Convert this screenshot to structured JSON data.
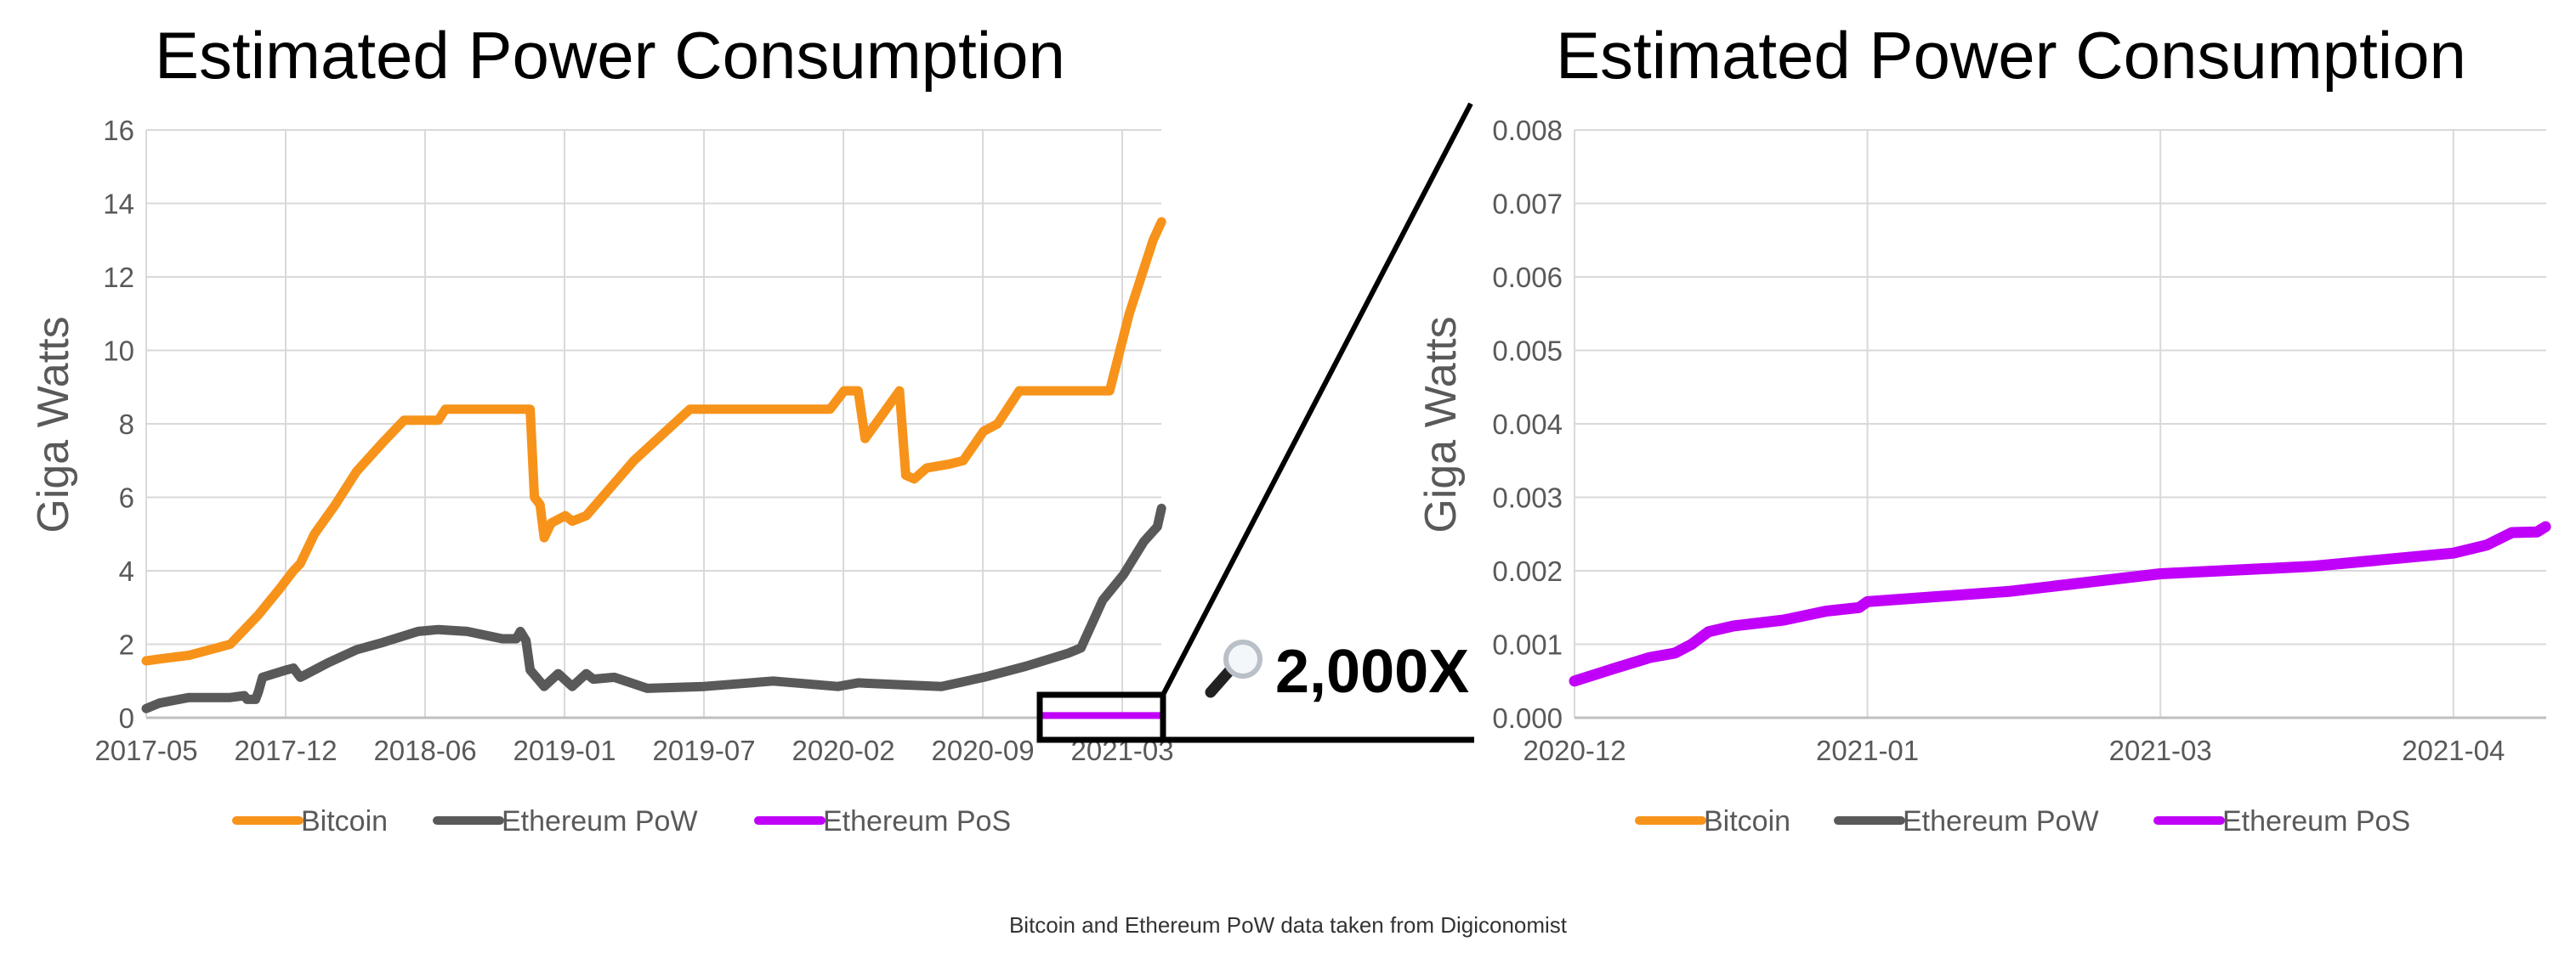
{
  "chart_data": [
    {
      "type": "line",
      "title": "Estimated Power Consumption",
      "xlabel": "",
      "ylabel": "Giga Watts",
      "ylim": [
        0,
        16
      ],
      "yticks": [
        "0",
        "2",
        "4",
        "6",
        "8",
        "10",
        "12",
        "14",
        "16"
      ],
      "xtick_labels": [
        "2017-05",
        "2017-12",
        "2018-06",
        "2019-01",
        "2019-07",
        "2020-02",
        "2020-09",
        "2021-03"
      ],
      "grid": true,
      "legend": "bottom",
      "series": [
        {
          "name": "Bitcoin",
          "color": "#F7931A",
          "x": [
            "2017-05-01",
            "2017-05-20",
            "2017-07-01",
            "2017-08-19",
            "2017-08-29",
            "2017-10-08",
            "2017-11-07",
            "2017-11-27",
            "2017-12-07",
            "2017-12-27",
            "2018-01-26",
            "2018-02-25",
            "2018-04-04",
            "2018-05-04",
            "2018-06-22",
            "2018-07-02",
            "2018-10-31",
            "2018-11-06",
            "2018-11-14",
            "2018-11-20",
            "2018-11-30",
            "2018-12-20",
            "2018-12-30",
            "2019-01-19",
            "2019-03-28",
            "2019-06-16",
            "2020-01-02",
            "2020-01-22",
            "2020-02-11",
            "2020-02-21",
            "2020-04-10",
            "2020-04-19",
            "2020-05-01",
            "2020-05-19",
            "2020-06-19",
            "2020-07-10",
            "2020-08-08",
            "2020-08-28",
            "2020-09-28",
            "2021-02-04",
            "2021-03-04",
            "2021-04-07",
            "2021-04-19"
          ],
          "y": [
            1.55,
            1.6,
            1.7,
            1.95,
            2.0,
            2.8,
            3.5,
            4.0,
            4.2,
            5.0,
            5.8,
            6.7,
            7.5,
            8.1,
            8.1,
            8.4,
            8.4,
            6.0,
            5.8,
            4.9,
            5.3,
            5.5,
            5.35,
            5.5,
            7.0,
            8.4,
            8.4,
            8.9,
            8.9,
            7.6,
            8.9,
            6.6,
            6.5,
            6.8,
            6.9,
            7.0,
            7.8,
            8.0,
            8.9,
            8.9,
            11.0,
            13.0,
            13.5
          ]
        },
        {
          "name": "Ethereum PoW",
          "color": "#595959",
          "x": [
            "2017-05-01",
            "2017-05-20",
            "2017-07-01",
            "2017-08-29",
            "2017-09-18",
            "2017-09-22",
            "2017-10-04",
            "2017-10-08",
            "2017-10-14",
            "2017-11-17",
            "2017-11-27",
            "2017-12-07",
            "2018-01-16",
            "2018-02-25",
            "2018-04-04",
            "2018-05-24",
            "2018-06-22",
            "2018-08-02",
            "2018-09-21",
            "2018-10-11",
            "2018-10-17",
            "2018-10-25",
            "2018-10-31",
            "2018-11-20",
            "2018-12-10",
            "2018-12-30",
            "2019-01-19",
            "2019-01-29",
            "2019-02-28",
            "2019-04-16",
            "2019-07-06",
            "2019-10-13",
            "2020-01-13",
            "2020-02-11",
            "2020-04-10",
            "2020-06-09",
            "2020-08-08",
            "2020-10-07",
            "2020-12-06",
            "2020-12-25",
            "2021-01-25",
            "2021-02-24",
            "2021-03-25",
            "2021-04-13",
            "2021-04-19"
          ],
          "y": [
            0.25,
            0.4,
            0.55,
            0.55,
            0.6,
            0.5,
            0.5,
            0.7,
            1.1,
            1.3,
            1.35,
            1.1,
            1.5,
            1.85,
            2.05,
            2.35,
            2.4,
            2.35,
            2.15,
            2.15,
            2.35,
            2.1,
            1.3,
            0.85,
            1.2,
            0.85,
            1.2,
            1.05,
            1.1,
            0.8,
            0.85,
            1.0,
            0.85,
            0.95,
            0.9,
            0.85,
            1.1,
            1.4,
            1.75,
            1.9,
            3.2,
            3.9,
            4.8,
            5.2,
            5.7
          ]
        },
        {
          "name": "Ethereum PoS",
          "color": "#C000F8",
          "x": [
            "2020-12-25",
            "2021-04-20"
          ],
          "y": [
            0.0005,
            0.0026
          ]
        }
      ]
    },
    {
      "type": "line",
      "title": "Estimated Power Consumption",
      "xlabel": "",
      "ylabel": "Giga Watts",
      "ylim": [
        0,
        0.008
      ],
      "yticks": [
        "0.000",
        "0.001",
        "0.002",
        "0.003",
        "0.004",
        "0.005",
        "0.006",
        "0.007",
        "0.008"
      ],
      "xtick_labels": [
        "2020-12",
        "2021-01",
        "2021-03",
        "2021-04"
      ],
      "grid": true,
      "legend": "bottom",
      "series": [
        {
          "name": "Bitcoin",
          "color": "#F7931A",
          "x": [],
          "y": []
        },
        {
          "name": "Ethereum PoW",
          "color": "#595959",
          "x": [],
          "y": []
        },
        {
          "name": "Ethereum PoS",
          "color": "#C000F8",
          "x": [
            "2020-12-25",
            "2020-12-30",
            "2021-01-03",
            "2021-01-06",
            "2021-01-08",
            "2021-01-10",
            "2021-01-13",
            "2021-01-19",
            "2021-01-24",
            "2021-01-28",
            "2021-01-29",
            "2021-02-15",
            "2021-03-05",
            "2021-03-23",
            "2021-04-09",
            "2021-04-13",
            "2021-04-16",
            "2021-04-19",
            "2021-04-20"
          ],
          "y": [
            0.0005,
            0.00068,
            0.00082,
            0.00088,
            0.001,
            0.00117,
            0.00125,
            0.00133,
            0.00145,
            0.0015,
            0.00158,
            0.00172,
            0.00196,
            0.00206,
            0.00224,
            0.00235,
            0.00252,
            0.00253,
            0.0026
          ]
        }
      ]
    }
  ],
  "zoom_callout": {
    "label": "2,000X",
    "icon": "magnifying-glass-icon"
  },
  "footnote": "Bitcoin and Ethereum PoW data taken from Digiconomist"
}
